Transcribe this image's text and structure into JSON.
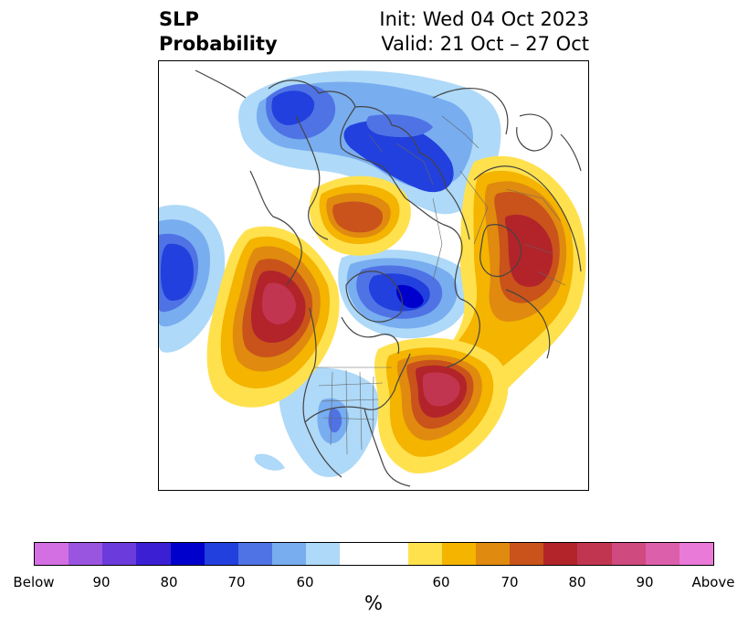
{
  "title": {
    "left_line1": "SLP",
    "left_line2": "Probability",
    "right_line1": "Init: Wed 04 Oct 2023",
    "right_line2": "Valid: 21 Oct – 27 Oct"
  },
  "colorbar": {
    "label": "%",
    "ticks": [
      "Below",
      "90",
      "80",
      "70",
      "60",
      "60",
      "70",
      "80",
      "90",
      "Above"
    ],
    "below_colors": [
      "#d46fe3",
      "#9a55e0",
      "#6b3bdb",
      "#3a1fd3",
      "#0000cc",
      "#2240dd",
      "#4f73e5",
      "#78adf0",
      "#aed9f8"
    ],
    "neutral_color": "#ffffff",
    "above_colors": [
      "#ffe14d",
      "#f4b400",
      "#e08a0f",
      "#c9531a",
      "#b2242a",
      "#c23550",
      "#cf4a7e",
      "#dc5fab",
      "#e97ad8"
    ]
  }
}
